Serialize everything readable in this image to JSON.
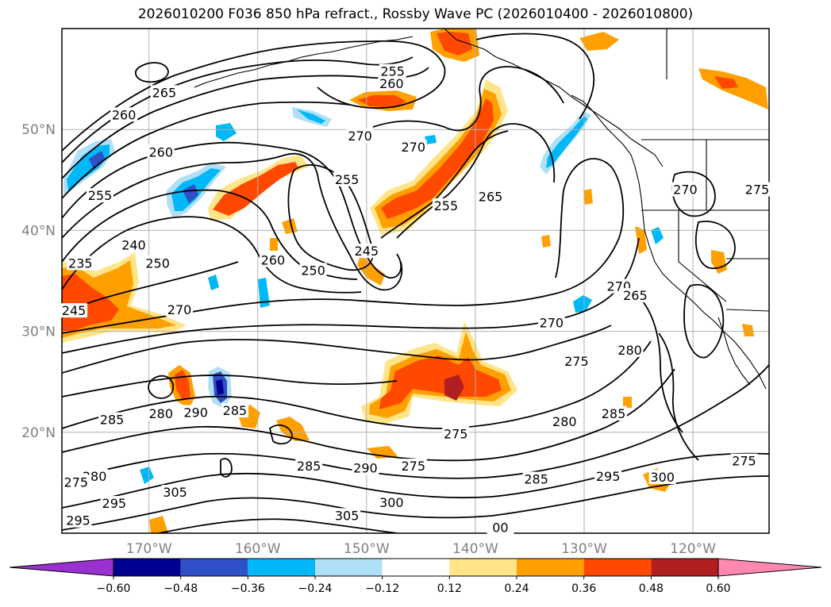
{
  "title": "2026010200 F036 850 hPa refract., Rossby Wave PC (2026010400 - 2026010800)",
  "map": {
    "lon_range": [
      -178,
      -113
    ],
    "lat_range": [
      10,
      60
    ],
    "meridians": [
      -170,
      -160,
      -150,
      -140,
      -130,
      -120
    ],
    "parallels": [
      20,
      30,
      40,
      50
    ],
    "lon_labels": [
      "170°W",
      "160°W",
      "150°W",
      "140°W",
      "130°W",
      "120°W"
    ],
    "lat_labels": [
      "20°N",
      "30°N",
      "40°N",
      "50°N"
    ]
  },
  "colorbar": {
    "ticks": [
      "-0.60",
      "-0.48",
      "-0.36",
      "-0.24",
      "-0.12",
      "0.12",
      "0.24",
      "0.36",
      "0.48",
      "0.60"
    ],
    "colors": [
      "#9b30d0",
      "#000090",
      "#3050c8",
      "#00b8f8",
      "#b0e0f8",
      "#ffffff",
      "#ffe488",
      "#ffa000",
      "#ff4800",
      "#b02020",
      "#ff88b0"
    ]
  },
  "contour_labels": [
    {
      "text": "255",
      "lon": -147.6,
      "lat": 55.7
    },
    {
      "text": "260",
      "lon": -147.7,
      "lat": 54.5
    },
    {
      "text": "265",
      "lon": -168.6,
      "lat": 53.6
    },
    {
      "text": "260",
      "lon": -172.3,
      "lat": 51.4
    },
    {
      "text": "270",
      "lon": -150.6,
      "lat": 49.3
    },
    {
      "text": "270",
      "lon": -145.7,
      "lat": 48.2
    },
    {
      "text": "260",
      "lon": -168.9,
      "lat": 47.7
    },
    {
      "text": "255",
      "lon": -151.8,
      "lat": 45.0
    },
    {
      "text": "255",
      "lon": -174.5,
      "lat": 43.4
    },
    {
      "text": "265",
      "lon": -138.6,
      "lat": 43.3
    },
    {
      "text": "255",
      "lon": -142.7,
      "lat": 42.4
    },
    {
      "text": "270",
      "lon": -120.7,
      "lat": 44.0
    },
    {
      "text": "275",
      "lon": -114.1,
      "lat": 44.0
    },
    {
      "text": "240",
      "lon": -171.4,
      "lat": 38.5
    },
    {
      "text": "245",
      "lon": -150.0,
      "lat": 37.9
    },
    {
      "text": "250",
      "lon": -169.2,
      "lat": 36.7
    },
    {
      "text": "260",
      "lon": -158.6,
      "lat": 37.0
    },
    {
      "text": "250",
      "lon": -154.9,
      "lat": 36.0
    },
    {
      "text": "235",
      "lon": -176.3,
      "lat": 36.7
    },
    {
      "text": "270",
      "lon": -126.8,
      "lat": 34.4
    },
    {
      "text": "265",
      "lon": -125.3,
      "lat": 33.5
    },
    {
      "text": "245",
      "lon": -176.9,
      "lat": 32.0
    },
    {
      "text": "270",
      "lon": -167.2,
      "lat": 32.1
    },
    {
      "text": "270",
      "lon": -133.0,
      "lat": 30.8
    },
    {
      "text": "280",
      "lon": -125.8,
      "lat": 28.1
    },
    {
      "text": "275",
      "lon": -130.7,
      "lat": 27.0
    },
    {
      "text": "280",
      "lon": -168.9,
      "lat": 21.8
    },
    {
      "text": "290",
      "lon": -165.7,
      "lat": 21.9
    },
    {
      "text": "285",
      "lon": -162.1,
      "lat": 22.1
    },
    {
      "text": "285",
      "lon": -173.4,
      "lat": 21.2
    },
    {
      "text": "280",
      "lon": -131.8,
      "lat": 21.0
    },
    {
      "text": "285",
      "lon": -127.3,
      "lat": 21.8
    },
    {
      "text": "275",
      "lon": -141.8,
      "lat": 19.8
    },
    {
      "text": "275",
      "lon": -115.3,
      "lat": 17.1
    },
    {
      "text": "280",
      "lon": -175.0,
      "lat": 15.6
    },
    {
      "text": "285",
      "lon": -155.3,
      "lat": 16.6
    },
    {
      "text": "290",
      "lon": -150.1,
      "lat": 16.4
    },
    {
      "text": "275",
      "lon": -145.7,
      "lat": 16.6
    },
    {
      "text": "285",
      "lon": -134.4,
      "lat": 15.3
    },
    {
      "text": "295",
      "lon": -127.8,
      "lat": 15.6
    },
    {
      "text": "300",
      "lon": -122.8,
      "lat": 15.5
    },
    {
      "text": "275",
      "lon": -176.7,
      "lat": 15.0
    },
    {
      "text": "305",
      "lon": -167.6,
      "lat": 14.0
    },
    {
      "text": "295",
      "lon": -173.2,
      "lat": 12.9
    },
    {
      "text": "300",
      "lon": -147.7,
      "lat": 13.0
    },
    {
      "text": "305",
      "lon": -151.8,
      "lat": 11.7
    },
    {
      "text": "295",
      "lon": -176.5,
      "lat": 11.2
    },
    {
      "text": "00",
      "lon": -137.7,
      "lat": 10.5
    }
  ]
}
